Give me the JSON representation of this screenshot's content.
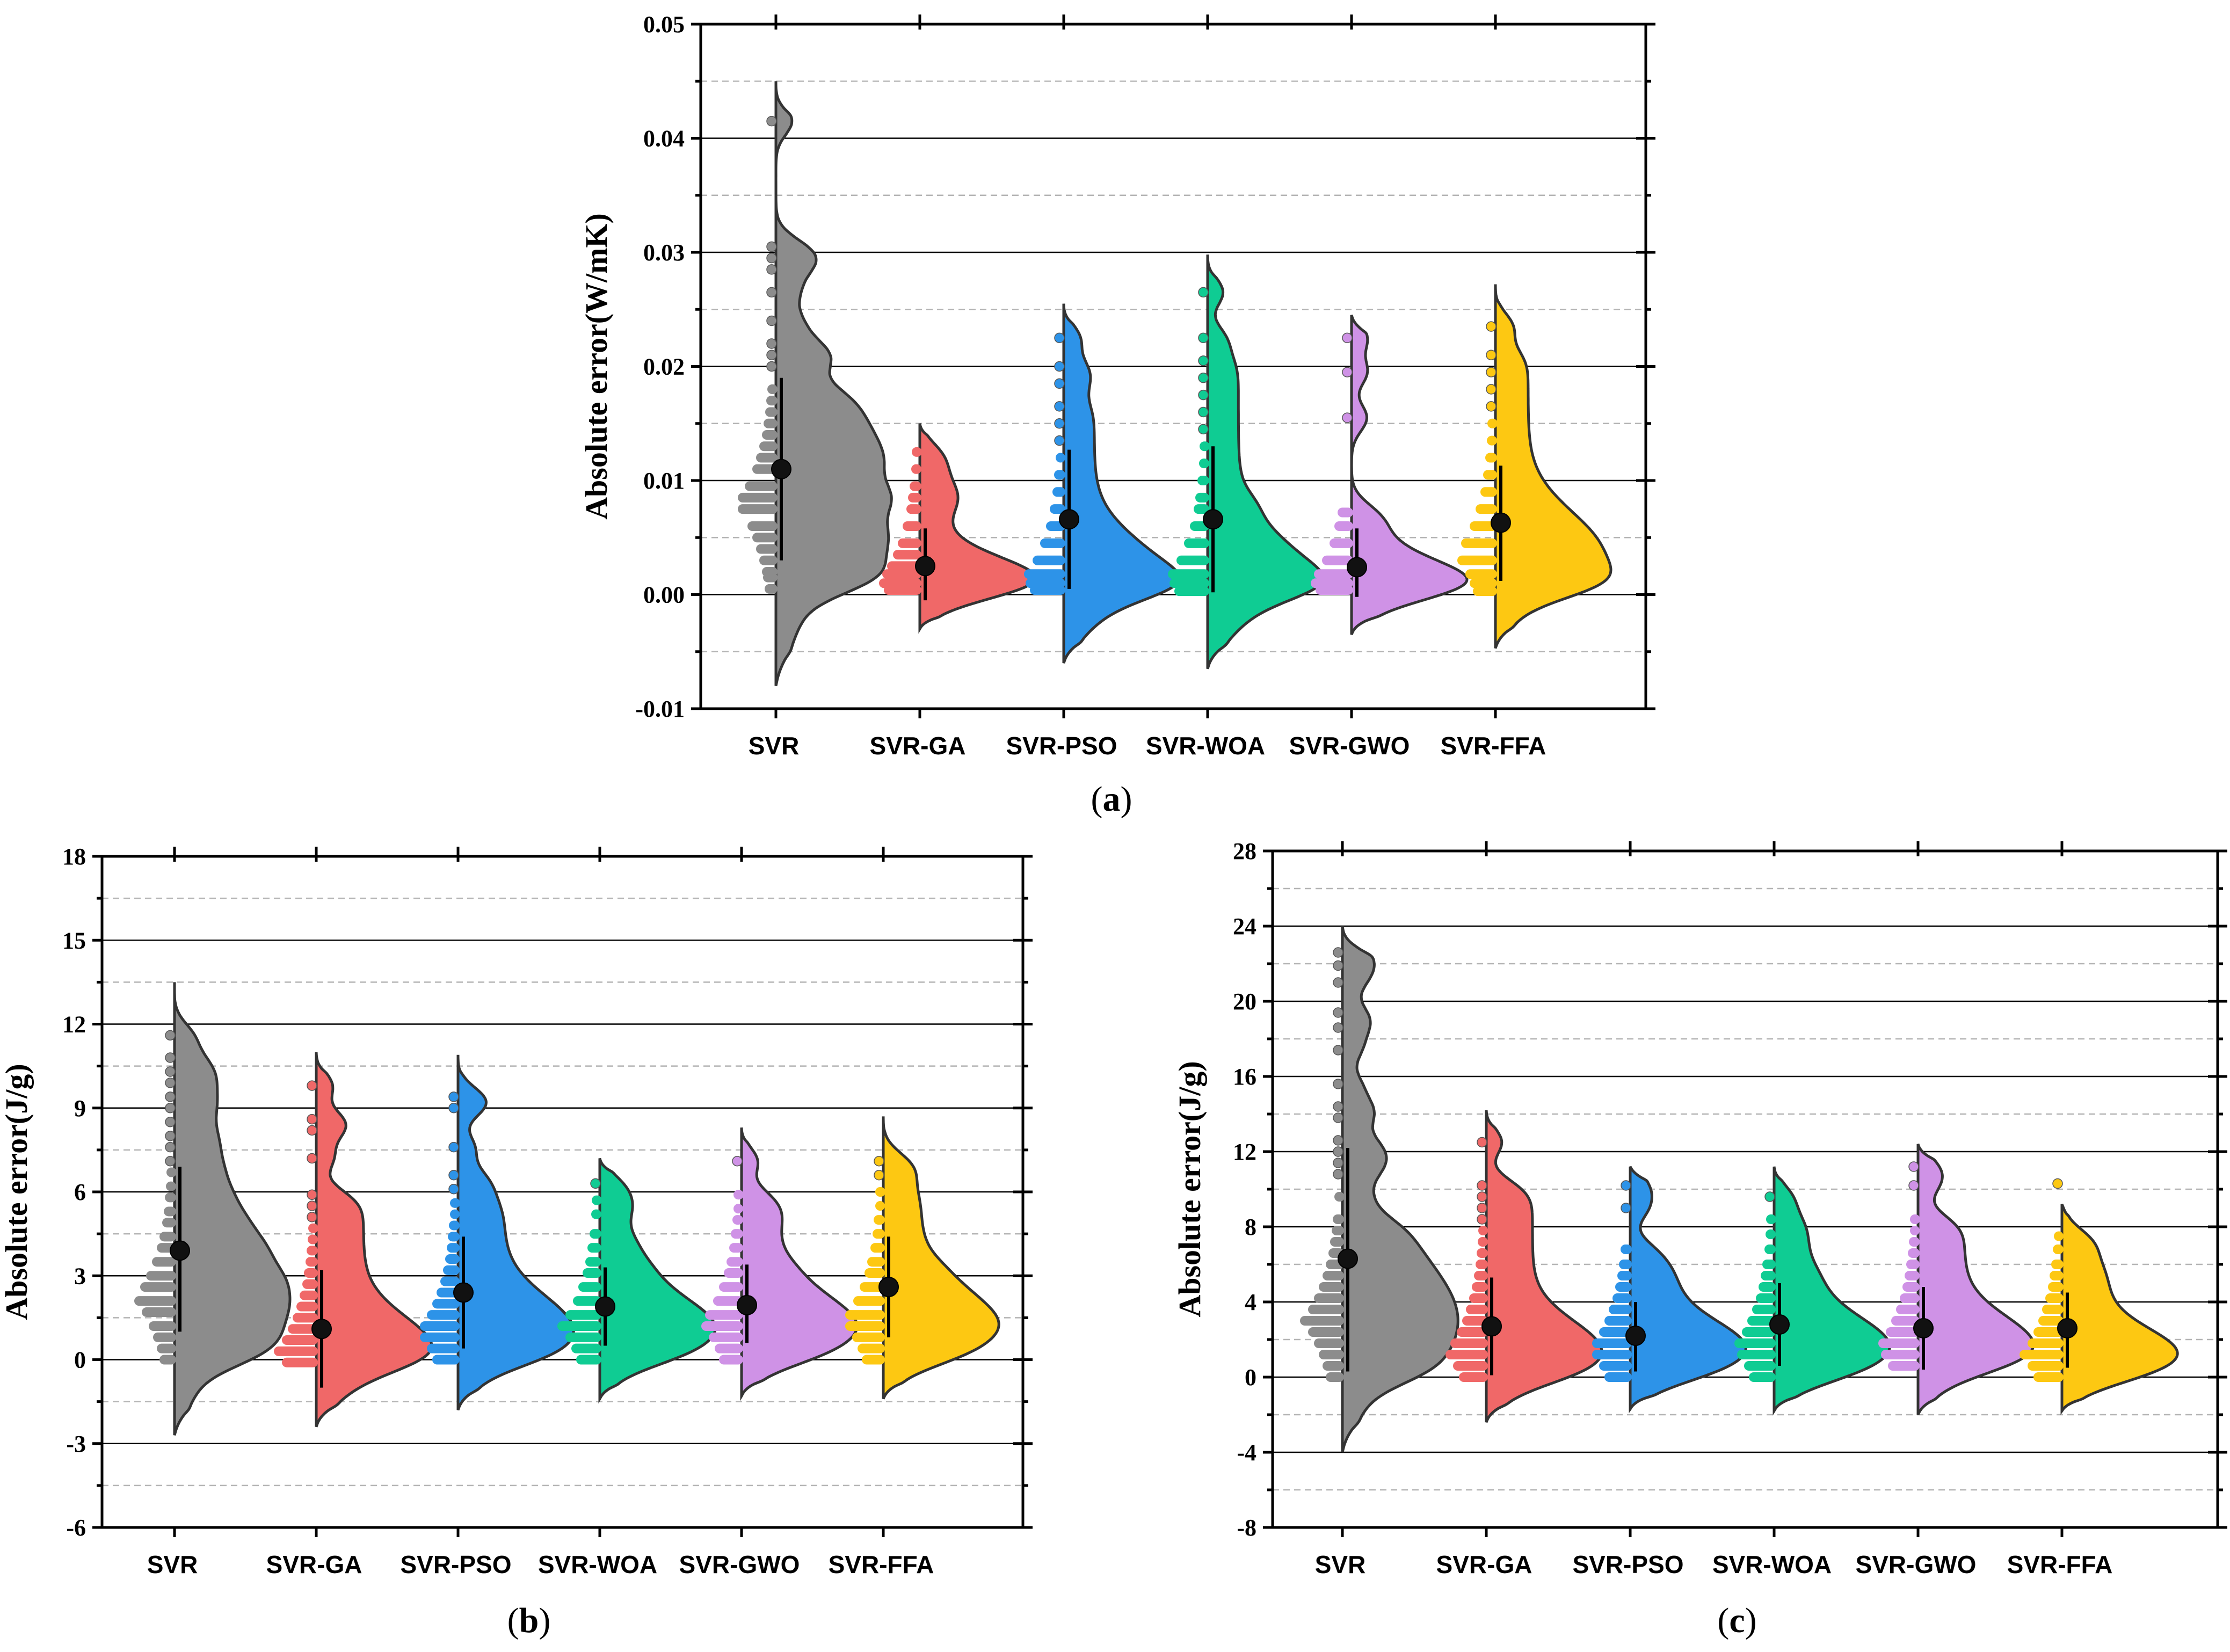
{
  "chart_data": [
    {
      "type": "violin",
      "panel": "a",
      "caption_open": "(",
      "caption_letter": "a",
      "caption_close": ")",
      "title": "",
      "xlabel": "",
      "ylabel": "Absolute error(W/mK)",
      "ylim": [
        -0.01,
        0.05
      ],
      "major_ticks": [
        -0.01,
        0.0,
        0.01,
        0.02,
        0.03,
        0.04,
        0.05
      ],
      "major_tick_labels": [
        "-0.01",
        "0.00",
        "0.01",
        "0.02",
        "0.03",
        "0.04",
        "0.05"
      ],
      "minor_ticks": [
        -0.005,
        0.005,
        0.015,
        0.025,
        0.035,
        0.045
      ],
      "grid": true,
      "categories": [
        "SVR",
        "SVR-GA",
        "SVR-PSO",
        "SVR-WOA",
        "SVR-GWO",
        "SVR-FFA"
      ],
      "colors": [
        "#8c8c8c",
        "#f06868",
        "#2d93e8",
        "#0fcc93",
        "#cf92e6",
        "#fdc812"
      ],
      "series": [
        {
          "name": "SVR",
          "mean": 0.011,
          "whisker": [
            0.003,
            0.019
          ],
          "kde_range": [
            -0.008,
            0.045
          ],
          "mode": 0.008,
          "points": [
            0.0005,
            0.0015,
            0.002,
            0.003,
            0.004,
            0.005,
            0.006,
            0.0075,
            0.0085,
            0.0095,
            0.011,
            0.012,
            0.013,
            0.014,
            0.015,
            0.016,
            0.017,
            0.018,
            0.02,
            0.021,
            0.022,
            0.024,
            0.0265,
            0.0285,
            0.0295,
            0.0305,
            0.0415
          ]
        },
        {
          "name": "SVR-GA",
          "mean": 0.0025,
          "whisker": [
            -0.0005,
            0.0058
          ],
          "kde_range": [
            -0.003,
            0.015
          ],
          "mode": 0.0012,
          "points": [
            0.0004,
            0.001,
            0.0018,
            0.0025,
            0.0035,
            0.0045,
            0.006,
            0.0075,
            0.0085,
            0.0095,
            0.011,
            0.0125
          ]
        },
        {
          "name": "SVR-PSO",
          "mean": 0.0066,
          "whisker": [
            0.0005,
            0.0127
          ],
          "kde_range": [
            -0.006,
            0.0255
          ],
          "mode": 0.0015,
          "points": [
            0.0004,
            0.001,
            0.0018,
            0.003,
            0.0045,
            0.006,
            0.0075,
            0.009,
            0.0105,
            0.012,
            0.0135,
            0.015,
            0.0165,
            0.0185,
            0.02,
            0.0225
          ]
        },
        {
          "name": "SVR-WOA",
          "mean": 0.0066,
          "whisker": [
            0.0002,
            0.013
          ],
          "kde_range": [
            -0.0065,
            0.0298
          ],
          "mode": 0.0015,
          "points": [
            0.0003,
            0.001,
            0.0018,
            0.003,
            0.0045,
            0.006,
            0.0075,
            0.0085,
            0.01,
            0.0115,
            0.013,
            0.0145,
            0.016,
            0.0175,
            0.019,
            0.0205,
            0.0225,
            0.0265
          ]
        },
        {
          "name": "SVR-GWO",
          "mean": 0.0024,
          "whisker": [
            -0.0002,
            0.0058
          ],
          "kde_range": [
            -0.0035,
            0.0245
          ],
          "mode": 0.0012,
          "points": [
            0.0004,
            0.001,
            0.0018,
            0.003,
            0.0045,
            0.006,
            0.0072,
            0.0155,
            0.0195,
            0.0225
          ]
        },
        {
          "name": "SVR-FFA",
          "mean": 0.0063,
          "whisker": [
            0.0012,
            0.0113
          ],
          "kde_range": [
            -0.0047,
            0.0272
          ],
          "mode": 0.0035,
          "points": [
            0.0003,
            0.001,
            0.0018,
            0.003,
            0.0045,
            0.006,
            0.0075,
            0.009,
            0.0105,
            0.012,
            0.0135,
            0.015,
            0.0165,
            0.018,
            0.0195,
            0.021,
            0.0235
          ]
        }
      ]
    },
    {
      "type": "violin",
      "panel": "b",
      "caption_open": "(",
      "caption_letter": "b",
      "caption_close": ")",
      "title": "",
      "xlabel": "",
      "ylabel": "Absolute error(J/g)",
      "ylim": [
        -6,
        18
      ],
      "major_ticks": [
        -6,
        -3,
        0,
        3,
        6,
        9,
        12,
        15,
        18
      ],
      "major_tick_labels": [
        "-6",
        "-3",
        "0",
        "3",
        "6",
        "9",
        "12",
        "15",
        "18"
      ],
      "minor_ticks": [
        -4.5,
        -1.5,
        1.5,
        4.5,
        7.5,
        10.5,
        13.5,
        16.5
      ],
      "grid": true,
      "categories": [
        "SVR",
        "SVR-GA",
        "SVR-PSO",
        "SVR-WOA",
        "SVR-GWO",
        "SVR-FFA"
      ],
      "colors": [
        "#8c8c8c",
        "#f06868",
        "#2d93e8",
        "#0fcc93",
        "#cf92e6",
        "#fdc812"
      ],
      "series": [
        {
          "name": "SVR",
          "mean": 3.9,
          "whisker": [
            1.0,
            6.9
          ],
          "kde_range": [
            -2.7,
            13.5
          ],
          "mode": 2.2,
          "points": [
            0.0,
            0.4,
            0.8,
            1.2,
            1.7,
            2.1,
            2.6,
            3.0,
            3.5,
            4.0,
            4.4,
            4.9,
            5.3,
            5.8,
            6.2,
            6.7,
            7.1,
            7.6,
            8.0,
            8.5,
            9.0,
            9.4,
            9.9,
            10.3,
            10.8,
            11.6
          ]
        },
        {
          "name": "SVR-GA",
          "mean": 1.1,
          "whisker": [
            -1.0,
            3.2
          ],
          "kde_range": [
            -2.4,
            11.0
          ],
          "mode": 0.3,
          "points": [
            -0.1,
            0.3,
            0.7,
            1.1,
            1.5,
            1.9,
            2.3,
            2.7,
            3.1,
            3.5,
            3.9,
            4.3,
            4.7,
            5.1,
            5.5,
            5.9,
            7.2,
            8.2,
            8.6,
            9.8
          ]
        },
        {
          "name": "SVR-PSO",
          "mean": 2.4,
          "whisker": [
            0.4,
            4.4
          ],
          "kde_range": [
            -1.8,
            10.9
          ],
          "mode": 1.0,
          "points": [
            0.0,
            0.4,
            0.8,
            1.2,
            1.6,
            2.0,
            2.4,
            2.8,
            3.2,
            3.6,
            4.0,
            4.4,
            4.8,
            5.2,
            5.6,
            6.1,
            6.6,
            7.6,
            9.0,
            9.4
          ]
        },
        {
          "name": "SVR-WOA",
          "mean": 1.9,
          "whisker": [
            0.5,
            3.3
          ],
          "kde_range": [
            -1.4,
            7.2
          ],
          "mode": 1.2,
          "points": [
            0.0,
            0.4,
            0.8,
            1.2,
            1.6,
            2.1,
            2.6,
            3.1,
            3.5,
            4.0,
            4.5,
            5.2,
            5.7,
            6.3
          ]
        },
        {
          "name": "SVR-GWO",
          "mean": 1.95,
          "whisker": [
            0.6,
            3.4
          ],
          "kde_range": [
            -1.3,
            8.3
          ],
          "mode": 1.3,
          "points": [
            0.0,
            0.4,
            0.8,
            1.2,
            1.6,
            2.1,
            2.6,
            3.1,
            3.5,
            4.0,
            4.5,
            5.0,
            5.4,
            5.9,
            7.1
          ]
        },
        {
          "name": "SVR-FFA",
          "mean": 2.6,
          "whisker": [
            0.8,
            4.4
          ],
          "kde_range": [
            -1.4,
            8.7
          ],
          "mode": 1.4,
          "points": [
            0.0,
            0.4,
            0.8,
            1.2,
            1.6,
            2.1,
            2.6,
            3.1,
            3.5,
            4.0,
            4.5,
            5.0,
            5.5,
            6.0,
            6.6,
            7.1
          ]
        }
      ]
    },
    {
      "type": "violin",
      "panel": "c",
      "caption_open": "(",
      "caption_letter": "c",
      "caption_close": ")",
      "title": "",
      "xlabel": "",
      "ylabel": "Absolute error(J/g)",
      "ylim": [
        -8,
        28
      ],
      "major_ticks": [
        -8,
        -4,
        0,
        4,
        8,
        12,
        16,
        20,
        24,
        28
      ],
      "major_tick_labels": [
        "-8",
        "-4",
        "0",
        "4",
        "8",
        "12",
        "16",
        "20",
        "24",
        "28"
      ],
      "minor_ticks": [
        -6,
        -2,
        2,
        6,
        10,
        14,
        18,
        22,
        26
      ],
      "grid": true,
      "categories": [
        "SVR",
        "SVR-GA",
        "SVR-PSO",
        "SVR-WOA",
        "SVR-GWO",
        "SVR-FFA"
      ],
      "colors": [
        "#8c8c8c",
        "#f06868",
        "#2d93e8",
        "#0fcc93",
        "#cf92e6",
        "#fdc812"
      ],
      "series": [
        {
          "name": "SVR",
          "mean": 6.3,
          "whisker": [
            0.3,
            12.2
          ],
          "kde_range": [
            -4.0,
            24.0
          ],
          "mode": 3.0,
          "points": [
            0.0,
            0.6,
            1.2,
            1.8,
            2.4,
            3.0,
            3.6,
            4.2,
            4.8,
            5.4,
            6.0,
            6.6,
            7.2,
            7.8,
            8.4,
            9.6,
            10.8,
            11.4,
            12.0,
            12.6,
            13.8,
            14.4,
            15.6,
            17.4,
            18.6,
            19.4,
            21.0,
            21.9,
            22.6
          ]
        },
        {
          "name": "SVR-GA",
          "mean": 2.7,
          "whisker": [
            0.1,
            5.3
          ],
          "kde_range": [
            -2.4,
            14.2
          ],
          "mode": 1.3,
          "points": [
            0.0,
            0.6,
            1.2,
            1.8,
            2.4,
            3.0,
            3.6,
            4.2,
            4.8,
            5.4,
            6.0,
            6.6,
            7.2,
            7.8,
            8.4,
            9.0,
            9.6,
            10.2,
            12.5
          ]
        },
        {
          "name": "SVR-PSO",
          "mean": 2.2,
          "whisker": [
            0.3,
            4.0
          ],
          "kde_range": [
            -1.7,
            11.2
          ],
          "mode": 1.5,
          "points": [
            0.0,
            0.6,
            1.2,
            1.8,
            2.4,
            3.0,
            3.6,
            4.2,
            4.8,
            5.4,
            6.0,
            6.8,
            9.0,
            10.2
          ]
        },
        {
          "name": "SVR-WOA",
          "mean": 2.8,
          "whisker": [
            0.6,
            5.0
          ],
          "kde_range": [
            -1.8,
            11.2
          ],
          "mode": 1.6,
          "points": [
            0.0,
            0.6,
            1.2,
            1.8,
            2.4,
            3.0,
            3.6,
            4.2,
            4.8,
            5.4,
            6.0,
            6.8,
            7.6,
            8.4,
            9.6
          ]
        },
        {
          "name": "SVR-GWO",
          "mean": 2.6,
          "whisker": [
            0.4,
            4.8
          ],
          "kde_range": [
            -2.0,
            12.4
          ],
          "mode": 1.6,
          "points": [
            0.6,
            1.2,
            1.8,
            2.4,
            3.0,
            3.6,
            4.2,
            4.8,
            5.4,
            6.0,
            6.6,
            7.2,
            7.8,
            8.4,
            10.2,
            11.2
          ]
        },
        {
          "name": "SVR-FFA",
          "mean": 2.6,
          "whisker": [
            0.5,
            4.5
          ],
          "kde_range": [
            -1.8,
            9.2
          ],
          "mode": 1.2,
          "points": [
            0.0,
            0.6,
            1.2,
            1.8,
            2.4,
            3.0,
            3.6,
            4.2,
            4.8,
            5.4,
            6.0,
            6.8,
            7.5,
            10.3
          ]
        }
      ]
    }
  ]
}
